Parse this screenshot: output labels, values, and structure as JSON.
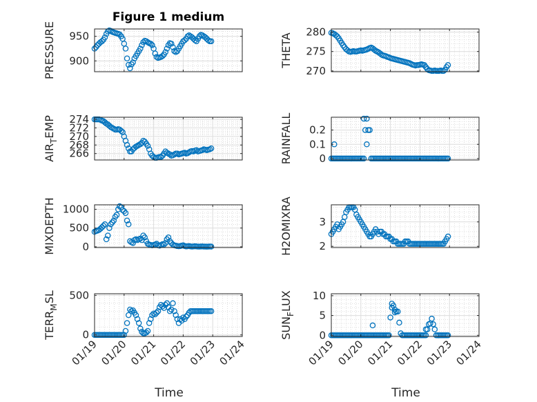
{
  "figure": {
    "title": "Figure 1 medium",
    "xlabel": "Time",
    "xticks": [
      "01/19",
      "01/20",
      "01/21",
      "01/22",
      "01/23",
      "01/24"
    ],
    "marker_color": "#0072BD"
  },
  "chart_data": [
    {
      "type": "scatter",
      "ylabel": "PRESSURE",
      "ylim": [
        878,
        965
      ],
      "yticks": [
        900,
        950
      ],
      "xlim": [
        0,
        5
      ],
      "x": [
        0.0,
        0.05,
        0.1,
        0.15,
        0.2,
        0.25,
        0.3,
        0.35,
        0.4,
        0.45,
        0.5,
        0.55,
        0.6,
        0.65,
        0.7,
        0.75,
        0.8,
        0.85,
        0.9,
        0.95,
        1.0,
        1.05,
        1.1,
        1.15,
        1.2,
        1.25,
        1.3,
        1.35,
        1.4,
        1.45,
        1.5,
        1.55,
        1.6,
        1.65,
        1.7,
        1.75,
        1.8,
        1.85,
        1.9,
        1.95,
        2.0,
        2.05,
        2.1,
        2.15,
        2.2,
        2.25,
        2.3,
        2.35,
        2.4,
        2.45,
        2.5,
        2.55,
        2.6,
        2.65,
        2.7,
        2.75,
        2.8,
        2.85,
        2.9,
        2.95,
        3.0,
        3.05,
        3.1,
        3.15,
        3.2,
        3.25,
        3.3,
        3.35,
        3.4,
        3.45,
        3.5,
        3.55,
        3.6,
        3.65,
        3.7,
        3.75,
        3.8,
        3.85,
        3.9,
        3.95
      ],
      "y": [
        925,
        928,
        932,
        935,
        938,
        940,
        943,
        948,
        955,
        960,
        962,
        961,
        959,
        958,
        957,
        956,
        955,
        954,
        950,
        945,
        935,
        925,
        905,
        892,
        885,
        893,
        897,
        905,
        910,
        915,
        920,
        925,
        932,
        938,
        941,
        940,
        938,
        936,
        935,
        932,
        925,
        915,
        908,
        906,
        907,
        908,
        910,
        913,
        918,
        925,
        932,
        936,
        935,
        928,
        920,
        918,
        920,
        925,
        930,
        935,
        940,
        942,
        945,
        950,
        952,
        950,
        948,
        945,
        942,
        940,
        945,
        950,
        953,
        952,
        950,
        948,
        945,
        942,
        940,
        940
      ]
    },
    {
      "type": "scatter",
      "ylabel": "THETA",
      "ylim": [
        269.8,
        280.8
      ],
      "yticks": [
        270,
        275,
        280
      ],
      "xlim": [
        0,
        5
      ],
      "x": [
        0.0,
        0.05,
        0.1,
        0.15,
        0.2,
        0.25,
        0.3,
        0.35,
        0.4,
        0.45,
        0.5,
        0.55,
        0.6,
        0.65,
        0.7,
        0.75,
        0.8,
        0.85,
        0.9,
        0.95,
        1.0,
        1.05,
        1.1,
        1.15,
        1.2,
        1.25,
        1.3,
        1.35,
        1.4,
        1.45,
        1.5,
        1.55,
        1.6,
        1.65,
        1.7,
        1.75,
        1.8,
        1.85,
        1.9,
        1.95,
        2.0,
        2.05,
        2.1,
        2.15,
        2.2,
        2.25,
        2.3,
        2.35,
        2.4,
        2.45,
        2.5,
        2.55,
        2.6,
        2.65,
        2.7,
        2.75,
        2.8,
        2.85,
        2.9,
        2.95,
        3.0,
        3.05,
        3.1,
        3.15,
        3.2,
        3.25,
        3.3,
        3.35,
        3.4,
        3.45,
        3.5,
        3.55,
        3.6,
        3.65,
        3.7,
        3.75,
        3.8,
        3.85,
        3.9,
        3.95
      ],
      "y": [
        279.8,
        279.7,
        279.5,
        279.2,
        278.9,
        278.4,
        277.8,
        277.2,
        276.6,
        276.1,
        275.6,
        275.3,
        275.0,
        274.9,
        275.0,
        275.1,
        275.0,
        275.0,
        275.1,
        275.2,
        275.3,
        275.2,
        275.3,
        275.4,
        275.5,
        275.7,
        275.9,
        276.0,
        275.8,
        275.5,
        275.2,
        275.0,
        274.8,
        274.5,
        274.2,
        274.0,
        273.9,
        273.8,
        273.6,
        273.5,
        273.3,
        273.2,
        273.1,
        273.0,
        272.9,
        272.8,
        272.7,
        272.6,
        272.5,
        272.4,
        272.3,
        272.2,
        272.1,
        272.0,
        271.8,
        271.6,
        271.5,
        271.4,
        271.5,
        271.5,
        271.6,
        271.7,
        271.6,
        271.5,
        271.0,
        270.5,
        270.2,
        270.1,
        270.0,
        270.0,
        270.1,
        270.0,
        270.0,
        270.0,
        270.1,
        270.0,
        270.0,
        270.3,
        271.0,
        271.5
      ]
    },
    {
      "type": "scatter",
      "ylabel": "AIR_TEMP",
      "ylabel_main": "AIR",
      "ylabel_sub": "T",
      "ylabel_rest": "EMP",
      "ylim": [
        264.5,
        274.5
      ],
      "yticks": [
        266,
        268,
        270,
        272,
        274
      ],
      "xlim": [
        0,
        5
      ],
      "x": [
        0.0,
        0.05,
        0.1,
        0.15,
        0.2,
        0.25,
        0.3,
        0.35,
        0.4,
        0.45,
        0.5,
        0.55,
        0.6,
        0.65,
        0.7,
        0.75,
        0.8,
        0.85,
        0.9,
        0.95,
        1.0,
        1.05,
        1.1,
        1.15,
        1.2,
        1.25,
        1.3,
        1.35,
        1.4,
        1.45,
        1.5,
        1.55,
        1.6,
        1.65,
        1.7,
        1.75,
        1.8,
        1.85,
        1.9,
        1.95,
        2.0,
        2.05,
        2.1,
        2.15,
        2.2,
        2.25,
        2.3,
        2.35,
        2.4,
        2.45,
        2.5,
        2.55,
        2.6,
        2.65,
        2.7,
        2.75,
        2.8,
        2.85,
        2.9,
        2.95,
        3.0,
        3.05,
        3.1,
        3.15,
        3.2,
        3.25,
        3.3,
        3.35,
        3.4,
        3.45,
        3.5,
        3.55,
        3.6,
        3.65,
        3.7,
        3.75,
        3.8,
        3.85,
        3.9,
        3.95
      ],
      "y": [
        274.0,
        274.0,
        274.0,
        274.0,
        273.9,
        273.7,
        273.6,
        273.3,
        273.0,
        272.8,
        272.5,
        272.2,
        272.0,
        271.8,
        271.6,
        271.6,
        271.7,
        271.6,
        271.3,
        271.0,
        270.0,
        269.0,
        268.0,
        267.2,
        266.5,
        266.5,
        267.0,
        267.3,
        267.6,
        267.8,
        268.0,
        268.2,
        268.5,
        269.0,
        268.8,
        268.3,
        267.8,
        267.0,
        266.0,
        265.5,
        265.2,
        265.0,
        265.0,
        265.1,
        265.2,
        265.2,
        265.5,
        266.0,
        266.5,
        266.2,
        266.0,
        265.8,
        265.5,
        265.6,
        265.8,
        266.0,
        266.0,
        265.8,
        265.9,
        266.0,
        266.1,
        266.2,
        266.0,
        266.1,
        266.3,
        266.5,
        266.6,
        266.5,
        266.7,
        266.8,
        266.5,
        266.6,
        266.7,
        266.8,
        267.0,
        266.9,
        266.8,
        266.9,
        267.0,
        267.2
      ]
    },
    {
      "type": "scatter",
      "ylabel": "RAINFALL",
      "ylim": [
        -0.01,
        0.29
      ],
      "yticks": [
        0,
        0.1,
        0.2
      ],
      "xlim": [
        0,
        5
      ],
      "x": [
        0.0,
        0.05,
        0.1,
        0.15,
        0.2,
        0.25,
        0.3,
        0.35,
        0.4,
        0.45,
        0.5,
        0.55,
        0.6,
        0.65,
        0.7,
        0.75,
        0.8,
        0.85,
        0.9,
        0.95,
        1.0,
        1.05,
        1.1,
        1.15,
        1.2,
        1.25,
        1.3,
        1.35,
        1.4,
        1.45,
        1.5,
        1.55,
        1.6,
        1.65,
        1.7,
        1.75,
        1.8,
        1.85,
        1.9,
        1.95,
        2.0,
        2.05,
        2.1,
        2.15,
        2.2,
        2.25,
        2.3,
        2.35,
        2.4,
        2.45,
        2.5,
        2.55,
        2.6,
        2.65,
        2.7,
        2.75,
        2.8,
        2.85,
        2.9,
        2.95,
        3.0,
        3.05,
        3.1,
        3.15,
        3.2,
        3.25,
        3.3,
        3.35,
        3.4,
        3.45,
        3.5,
        3.55,
        3.6,
        3.65,
        3.7,
        3.75,
        3.8,
        3.85,
        3.9,
        3.95,
        0.1,
        1.1,
        1.2
      ],
      "y": [
        0,
        0,
        0,
        0,
        0,
        0,
        0,
        0,
        0,
        0,
        0,
        0,
        0,
        0,
        0,
        0,
        0,
        0,
        0,
        0,
        0,
        0,
        0,
        0.2,
        0.28,
        0.2,
        0.2,
        0,
        0,
        0,
        0,
        0,
        0,
        0,
        0,
        0,
        0,
        0,
        0,
        0,
        0,
        0,
        0,
        0,
        0,
        0,
        0,
        0,
        0,
        0,
        0,
        0,
        0,
        0,
        0,
        0,
        0,
        0,
        0,
        0,
        0,
        0,
        0,
        0,
        0,
        0,
        0,
        0,
        0,
        0,
        0,
        0,
        0,
        0,
        0,
        0,
        0,
        0,
        0,
        0,
        0.1,
        0.28,
        0.1
      ]
    },
    {
      "type": "scatter",
      "ylabel": "MIXDEPTH",
      "ylim": [
        -20,
        1120
      ],
      "yticks": [
        0,
        500,
        1000
      ],
      "xlim": [
        0,
        5
      ],
      "x": [
        0.0,
        0.05,
        0.1,
        0.15,
        0.2,
        0.25,
        0.3,
        0.35,
        0.4,
        0.45,
        0.5,
        0.55,
        0.6,
        0.65,
        0.7,
        0.75,
        0.8,
        0.85,
        0.9,
        0.95,
        1.0,
        1.05,
        1.1,
        1.15,
        1.2,
        1.25,
        1.3,
        1.35,
        1.4,
        1.45,
        1.5,
        1.55,
        1.6,
        1.65,
        1.7,
        1.75,
        1.8,
        1.85,
        1.9,
        1.95,
        2.0,
        2.05,
        2.1,
        2.15,
        2.2,
        2.25,
        2.3,
        2.35,
        2.4,
        2.45,
        2.5,
        2.55,
        2.6,
        2.65,
        2.7,
        2.75,
        2.8,
        2.85,
        2.9,
        2.95,
        3.0,
        3.05,
        3.1,
        3.15,
        3.2,
        3.25,
        3.3,
        3.35,
        3.4,
        3.45,
        3.5,
        3.55,
        3.6,
        3.65,
        3.7,
        3.75,
        3.8,
        3.85,
        3.9,
        3.95
      ],
      "y": [
        400,
        420,
        430,
        450,
        480,
        520,
        560,
        600,
        200,
        300,
        500,
        600,
        650,
        700,
        800,
        850,
        1000,
        1080,
        1050,
        980,
        950,
        900,
        700,
        600,
        150,
        120,
        100,
        180,
        200,
        180,
        200,
        220,
        180,
        300,
        250,
        150,
        80,
        60,
        50,
        40,
        50,
        60,
        80,
        40,
        30,
        50,
        70,
        60,
        100,
        200,
        250,
        150,
        100,
        60,
        40,
        30,
        20,
        15,
        20,
        30,
        40,
        20,
        10,
        15,
        20,
        10,
        5,
        10,
        15,
        10,
        5,
        5,
        8,
        10,
        5,
        5,
        3,
        5,
        8,
        5
      ]
    },
    {
      "type": "scatter",
      "ylabel": "H2OMIXRA",
      "ylim": [
        1.95,
        3.7
      ],
      "yticks": [
        2,
        3
      ],
      "xlim": [
        0,
        5
      ],
      "x": [
        0.0,
        0.05,
        0.1,
        0.15,
        0.2,
        0.25,
        0.3,
        0.35,
        0.4,
        0.45,
        0.5,
        0.55,
        0.6,
        0.65,
        0.7,
        0.75,
        0.8,
        0.85,
        0.9,
        0.95,
        1.0,
        1.05,
        1.1,
        1.15,
        1.2,
        1.25,
        1.3,
        1.35,
        1.4,
        1.45,
        1.5,
        1.55,
        1.6,
        1.65,
        1.7,
        1.75,
        1.8,
        1.85,
        1.9,
        1.95,
        2.0,
        2.05,
        2.1,
        2.15,
        2.2,
        2.25,
        2.3,
        2.35,
        2.4,
        2.45,
        2.5,
        2.55,
        2.6,
        2.65,
        2.7,
        2.75,
        2.8,
        2.85,
        2.9,
        2.95,
        3.0,
        3.05,
        3.1,
        3.15,
        3.2,
        3.25,
        3.3,
        3.35,
        3.4,
        3.45,
        3.5,
        3.55,
        3.6,
        3.65,
        3.7,
        3.75,
        3.8,
        3.85,
        3.9,
        3.95
      ],
      "y": [
        2.5,
        2.6,
        2.7,
        2.8,
        2.9,
        2.7,
        2.8,
        2.9,
        3.0,
        3.2,
        3.4,
        3.5,
        3.6,
        3.6,
        3.6,
        3.6,
        3.5,
        3.3,
        3.2,
        3.1,
        3.0,
        2.9,
        2.8,
        2.7,
        2.6,
        2.5,
        2.4,
        2.4,
        2.5,
        2.6,
        2.7,
        2.6,
        2.5,
        2.6,
        2.6,
        2.5,
        2.5,
        2.4,
        2.4,
        2.4,
        2.3,
        2.3,
        2.2,
        2.2,
        2.2,
        2.1,
        2.1,
        2.1,
        2.1,
        2.1,
        2.2,
        2.2,
        2.2,
        2.1,
        2.1,
        2.1,
        2.1,
        2.1,
        2.1,
        2.1,
        2.1,
        2.1,
        2.1,
        2.1,
        2.1,
        2.1,
        2.1,
        2.1,
        2.1,
        2.1,
        2.1,
        2.1,
        2.1,
        2.1,
        2.1,
        2.1,
        2.1,
        2.2,
        2.3,
        2.4
      ]
    },
    {
      "type": "scatter",
      "ylabel": "TERR_MSL",
      "ylabel_main": "TERR",
      "ylabel_sub": "M",
      "ylabel_rest": "SL",
      "ylim": [
        -20,
        520
      ],
      "yticks": [
        0,
        500
      ],
      "xlim": [
        0,
        5
      ],
      "x": [
        0.0,
        0.05,
        0.1,
        0.15,
        0.2,
        0.25,
        0.3,
        0.35,
        0.4,
        0.45,
        0.5,
        0.55,
        0.6,
        0.65,
        0.7,
        0.75,
        0.8,
        0.85,
        0.9,
        0.95,
        1.0,
        1.05,
        1.1,
        1.15,
        1.2,
        1.25,
        1.3,
        1.35,
        1.4,
        1.45,
        1.5,
        1.55,
        1.6,
        1.65,
        1.7,
        1.75,
        1.8,
        1.85,
        1.9,
        1.95,
        2.0,
        2.05,
        2.1,
        2.15,
        2.2,
        2.25,
        2.3,
        2.35,
        2.4,
        2.45,
        2.5,
        2.55,
        2.6,
        2.65,
        2.7,
        2.75,
        2.8,
        2.85,
        2.9,
        2.95,
        3.0,
        3.05,
        3.1,
        3.15,
        3.2,
        3.25,
        3.3,
        3.35,
        3.4,
        3.45,
        3.5,
        3.55,
        3.6,
        3.65,
        3.7,
        3.75,
        3.8,
        3.85,
        3.9,
        3.95
      ],
      "y": [
        0,
        0,
        0,
        0,
        0,
        0,
        0,
        0,
        0,
        0,
        0,
        0,
        0,
        0,
        0,
        0,
        0,
        0,
        0,
        0,
        0,
        50,
        150,
        250,
        320,
        300,
        310,
        280,
        250,
        200,
        150,
        80,
        40,
        20,
        20,
        30,
        50,
        150,
        200,
        250,
        270,
        260,
        280,
        300,
        350,
        380,
        360,
        340,
        380,
        400,
        350,
        300,
        320,
        400,
        300,
        250,
        200,
        150,
        200,
        180,
        220,
        200,
        230,
        250,
        280,
        300,
        300,
        300,
        300,
        300,
        300,
        300,
        300,
        300,
        300,
        300,
        300,
        300,
        300,
        300
      ]
    },
    {
      "type": "scatter",
      "ylabel": "SUN_FLUX",
      "ylabel_main": "SUN",
      "ylabel_sub": "F",
      "ylabel_rest": "LUX",
      "ylim": [
        -0.3,
        10.5
      ],
      "yticks": [
        0,
        5,
        10
      ],
      "xlim": [
        0,
        5
      ],
      "x": [
        0.0,
        0.05,
        0.1,
        0.15,
        0.2,
        0.25,
        0.3,
        0.35,
        0.4,
        0.45,
        0.5,
        0.55,
        0.6,
        0.65,
        0.7,
        0.75,
        0.8,
        0.85,
        0.9,
        0.95,
        1.0,
        1.05,
        1.1,
        1.15,
        1.2,
        1.25,
        1.3,
        1.35,
        1.4,
        1.45,
        1.5,
        1.55,
        1.6,
        1.65,
        1.7,
        1.75,
        1.8,
        1.85,
        1.9,
        1.95,
        2.0,
        2.05,
        2.1,
        2.15,
        2.2,
        2.25,
        2.3,
        2.35,
        2.4,
        2.45,
        2.5,
        2.55,
        2.6,
        2.65,
        2.7,
        2.75,
        2.8,
        2.85,
        2.9,
        2.95,
        3.0,
        3.05,
        3.1,
        3.15,
        3.2,
        3.25,
        3.3,
        3.35,
        3.4,
        3.45,
        3.5,
        3.55,
        3.6,
        3.65,
        3.7,
        3.75,
        3.8,
        3.85,
        3.9,
        3.95,
        1.4,
        2.05,
        2.15,
        3.2
      ],
      "y": [
        0,
        0,
        0,
        0,
        0,
        0,
        0,
        0,
        0,
        0,
        0,
        0,
        0,
        0,
        0,
        0,
        0,
        0,
        0,
        0,
        0,
        0,
        0,
        0,
        0,
        0,
        0,
        0,
        0,
        0,
        0,
        0,
        0,
        0,
        0,
        0,
        0,
        0,
        0,
        0,
        4.5,
        8.0,
        7.5,
        6.5,
        6.0,
        6.0,
        3.2,
        0.5,
        0,
        0,
        0,
        0,
        0,
        0,
        0,
        0,
        0,
        0,
        0,
        0,
        0,
        0,
        0,
        0,
        0,
        1.5,
        2.8,
        3.0,
        4.2,
        2.8,
        1.5,
        0,
        0,
        0,
        0,
        0,
        0,
        0,
        0,
        0,
        2.5,
        7.0,
        5.8,
        1.5
      ]
    }
  ]
}
